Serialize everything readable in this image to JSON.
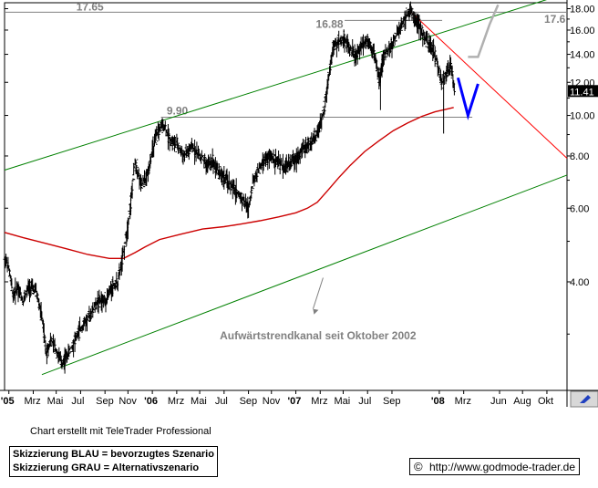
{
  "chart_data": {
    "type": "ohlc",
    "scale": "log",
    "ylim": [
      2.2,
      18.6
    ],
    "y_ticks": [
      4.0,
      6.0,
      8.0,
      10.0,
      12.0,
      14.0,
      16.0,
      18.0
    ],
    "y_tick_labels": [
      "4.00",
      "6.00",
      "8.00",
      "10.00",
      "12.00",
      "14.00",
      "16.00",
      "18.00"
    ],
    "x_range": [
      2004.97,
      2008.89
    ],
    "x_ticks": [
      {
        "x": 2005.0,
        "label": "'05",
        "bold": true
      },
      {
        "x": 2005.17,
        "label": "Mrz"
      },
      {
        "x": 2005.33,
        "label": "Mai"
      },
      {
        "x": 2005.5,
        "label": "Jul"
      },
      {
        "x": 2005.67,
        "label": "Sep"
      },
      {
        "x": 2005.83,
        "label": "Nov"
      },
      {
        "x": 2006.0,
        "label": "'06",
        "bold": true
      },
      {
        "x": 2006.17,
        "label": "Mrz"
      },
      {
        "x": 2006.33,
        "label": "Mai"
      },
      {
        "x": 2006.5,
        "label": "Jul"
      },
      {
        "x": 2006.67,
        "label": "Sep"
      },
      {
        "x": 2006.83,
        "label": "Nov"
      },
      {
        "x": 2007.0,
        "label": "'07",
        "bold": true
      },
      {
        "x": 2007.17,
        "label": "Mrz"
      },
      {
        "x": 2007.33,
        "label": "Mai"
      },
      {
        "x": 2007.5,
        "label": "Jul"
      },
      {
        "x": 2007.67,
        "label": "Sep"
      },
      {
        "x": 2008.0,
        "label": "'08",
        "bold": true
      },
      {
        "x": 2008.17,
        "label": "Mrz"
      },
      {
        "x": 2008.42,
        "label": "Jun"
      },
      {
        "x": 2008.58,
        "label": "Aug"
      },
      {
        "x": 2008.75,
        "label": "Okt"
      }
    ],
    "price_path": [
      [
        2004.97,
        4.6
      ],
      [
        2005.0,
        4.3
      ],
      [
        2005.03,
        3.7
      ],
      [
        2005.06,
        3.9
      ],
      [
        2005.1,
        3.6
      ],
      [
        2005.14,
        3.9
      ],
      [
        2005.19,
        3.8
      ],
      [
        2005.23,
        3.3
      ],
      [
        2005.26,
        2.7
      ],
      [
        2005.29,
        2.9
      ],
      [
        2005.32,
        2.8
      ],
      [
        2005.37,
        2.55
      ],
      [
        2005.4,
        2.65
      ],
      [
        2005.44,
        2.8
      ],
      [
        2005.5,
        3.1
      ],
      [
        2005.56,
        3.3
      ],
      [
        2005.62,
        3.6
      ],
      [
        2005.67,
        3.6
      ],
      [
        2005.72,
        3.9
      ],
      [
        2005.76,
        4.0
      ],
      [
        2005.8,
        4.7
      ],
      [
        2005.83,
        5.5
      ],
      [
        2005.85,
        6.2
      ],
      [
        2005.88,
        7.8
      ],
      [
        2005.92,
        6.8
      ],
      [
        2005.96,
        7.1
      ],
      [
        2006.0,
        8.2
      ],
      [
        2006.04,
        9.2
      ],
      [
        2006.08,
        9.5
      ],
      [
        2006.12,
        8.8
      ],
      [
        2006.17,
        8.5
      ],
      [
        2006.22,
        8.0
      ],
      [
        2006.28,
        8.4
      ],
      [
        2006.33,
        8.0
      ],
      [
        2006.38,
        7.6
      ],
      [
        2006.42,
        7.8
      ],
      [
        2006.47,
        7.3
      ],
      [
        2006.53,
        6.9
      ],
      [
        2006.58,
        6.6
      ],
      [
        2006.63,
        6.3
      ],
      [
        2006.67,
        6.0
      ],
      [
        2006.7,
        6.9
      ],
      [
        2006.74,
        7.4
      ],
      [
        2006.78,
        7.8
      ],
      [
        2006.83,
        8.0
      ],
      [
        2006.88,
        7.7
      ],
      [
        2006.92,
        7.5
      ],
      [
        2006.96,
        7.7
      ],
      [
        2007.0,
        7.9
      ],
      [
        2007.05,
        8.3
      ],
      [
        2007.1,
        8.6
      ],
      [
        2007.14,
        8.9
      ],
      [
        2007.17,
        9.4
      ],
      [
        2007.2,
        10.5
      ],
      [
        2007.23,
        12.5
      ],
      [
        2007.26,
        14.5
      ],
      [
        2007.3,
        15.0
      ],
      [
        2007.34,
        15.3
      ],
      [
        2007.38,
        14.4
      ],
      [
        2007.42,
        13.8
      ],
      [
        2007.46,
        14.8
      ],
      [
        2007.5,
        15.2
      ],
      [
        2007.54,
        14.3
      ],
      [
        2007.58,
        12.3
      ],
      [
        2007.62,
        14.0
      ],
      [
        2007.66,
        14.5
      ],
      [
        2007.7,
        15.5
      ],
      [
        2007.74,
        16.5
      ],
      [
        2007.77,
        17.4
      ],
      [
        2007.8,
        17.7
      ],
      [
        2007.84,
        16.9
      ],
      [
        2007.88,
        15.8
      ],
      [
        2007.92,
        14.9
      ],
      [
        2007.96,
        14.3
      ],
      [
        2008.0,
        12.7
      ],
      [
        2008.02,
        11.9
      ],
      [
        2008.04,
        12.5
      ],
      [
        2008.08,
        13.1
      ],
      [
        2008.11,
        11.41
      ]
    ],
    "moving_average": [
      [
        2004.97,
        5.25
      ],
      [
        2005.1,
        5.1
      ],
      [
        2005.25,
        4.95
      ],
      [
        2005.4,
        4.8
      ],
      [
        2005.55,
        4.65
      ],
      [
        2005.7,
        4.55
      ],
      [
        2005.8,
        4.55
      ],
      [
        2005.88,
        4.7
      ],
      [
        2005.95,
        4.85
      ],
      [
        2006.05,
        5.05
      ],
      [
        2006.2,
        5.2
      ],
      [
        2006.35,
        5.35
      ],
      [
        2006.5,
        5.42
      ],
      [
        2006.62,
        5.5
      ],
      [
        2006.75,
        5.6
      ],
      [
        2006.88,
        5.72
      ],
      [
        2007.0,
        5.85
      ],
      [
        2007.08,
        6.0
      ],
      [
        2007.15,
        6.2
      ],
      [
        2007.22,
        6.6
      ],
      [
        2007.3,
        7.1
      ],
      [
        2007.38,
        7.6
      ],
      [
        2007.48,
        8.2
      ],
      [
        2007.58,
        8.7
      ],
      [
        2007.68,
        9.2
      ],
      [
        2007.78,
        9.6
      ],
      [
        2007.88,
        9.95
      ],
      [
        2007.97,
        10.2
      ],
      [
        2008.05,
        10.35
      ],
      [
        2008.1,
        10.45
      ]
    ],
    "levels": [
      {
        "y": 17.65,
        "label": "17.65",
        "color": "#808080",
        "x_from": 2004.97,
        "x_to": 2008.89
      },
      {
        "y": 16.88,
        "label": "16.88",
        "color": "#808080",
        "x_from": 2007.34,
        "x_to": 2008.02
      },
      {
        "y": 9.9,
        "label": "9.90",
        "color": "#808080",
        "x_from": 2006.06,
        "x_to": 2008.23
      }
    ],
    "lines": [
      {
        "name": "channel-upper",
        "color": "#008000",
        "x": [
          2004.97,
          2008.89
        ],
        "y": [
          7.4,
          19.6
        ]
      },
      {
        "name": "channel-lower",
        "color": "#008000",
        "x": [
          2005.23,
          2008.89
        ],
        "y": [
          2.4,
          7.2
        ]
      },
      {
        "name": "resistance-falling",
        "color": "#ff0000",
        "x": [
          2007.8,
          2008.89
        ],
        "y": [
          17.7,
          7.9
        ]
      }
    ],
    "scenarios": [
      {
        "name": "scenario-blue",
        "color": "#0000ff",
        "x": [
          2008.13,
          2008.2,
          2008.27
        ],
        "y": [
          12.3,
          10.0,
          11.9
        ]
      },
      {
        "name": "scenario-grey",
        "color": "#b0b0b0",
        "x": [
          2008.2,
          2008.27,
          2008.35,
          2008.41
        ],
        "y": [
          13.8,
          13.8,
          16.5,
          18.4
        ]
      }
    ],
    "current_price": "11.41",
    "right_label_top": "17.6",
    "annotation": "Aufwärtstrendkanal seit Oktober 2002"
  },
  "credit": "Chart erstellt mit TeleTrader Professional",
  "legend": {
    "blue": "Skizzierung BLAU = bevorzugtes Szenario",
    "grey": "Skizzierung GRAU = Alternativszenario"
  },
  "source": {
    "copyright_symbol": "©",
    "url": "http://www.godmode-trader.de"
  },
  "colors": {
    "price": "#000000",
    "moving_average": "#cc0000",
    "channel": "#008000",
    "resistance": "#ff0000",
    "blue_scenario": "#0000ff",
    "grey_scenario": "#b0b0b0"
  }
}
